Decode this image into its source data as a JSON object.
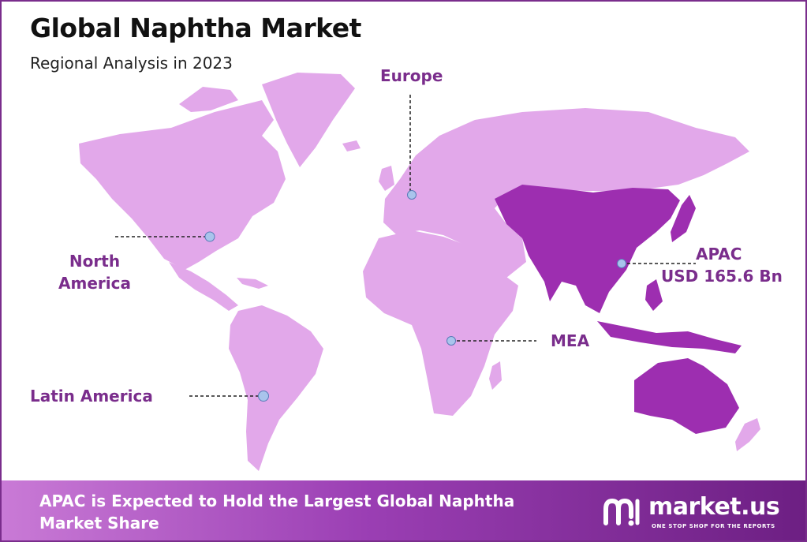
{
  "header": {
    "title": "Global Naphtha Market",
    "subtitle": "Regional Analysis in 2023"
  },
  "colors": {
    "frame": "#7a2d8c",
    "label_text": "#7a2d8c",
    "land_default": "#e2a8ea",
    "land_highlight": "#9d2eb0",
    "marker": "#a9c4ec",
    "leader_line": "#222222"
  },
  "regions": [
    {
      "id": "north-america",
      "label": "North America",
      "highlighted": false
    },
    {
      "id": "europe",
      "label": "Europe",
      "highlighted": false
    },
    {
      "id": "apac",
      "label": "APAC",
      "value": "USD 165.6 Bn",
      "highlighted": true
    },
    {
      "id": "mea",
      "label": "MEA",
      "highlighted": false
    },
    {
      "id": "latin-america",
      "label": "Latin America",
      "highlighted": false
    }
  ],
  "footer": {
    "headline": "APAC is Expected to Hold the Largest Global Naphtha Market Share"
  },
  "brand": {
    "name": "market.us",
    "tagline": "ONE STOP SHOP FOR THE REPORTS",
    "icon": "market-us-logo-icon"
  }
}
